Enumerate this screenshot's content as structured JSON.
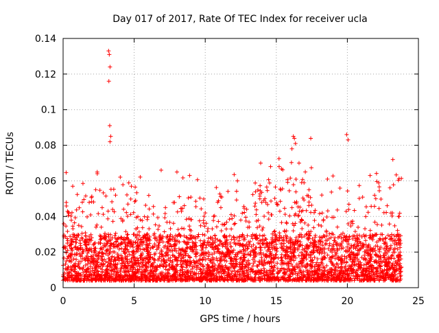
{
  "chart_data": {
    "type": "scatter",
    "title": "Day 017 of 2017, Rate Of TEC Index for receiver ucla",
    "xlabel": "GPS time / hours",
    "ylabel": "ROTI / TECUs",
    "xlim": [
      0,
      25
    ],
    "ylim": [
      0,
      0.14
    ],
    "xticks": [
      0,
      5,
      10,
      15,
      20,
      25
    ],
    "xtick_labels": [
      "0",
      "5",
      "10",
      "15",
      "20",
      "25"
    ],
    "yticks": [
      0,
      0.02,
      0.04,
      0.06,
      0.08,
      0.1,
      0.12,
      0.14
    ],
    "ytick_labels": [
      "0",
      "0.02",
      "0.04",
      "0.06",
      "0.08",
      "0.1",
      "0.12",
      "0.14"
    ],
    "grid": true,
    "marker": "+",
    "color": "#ff0000",
    "sampled_points": {
      "x": [
        3.2,
        3.25,
        3.3,
        3.22,
        3.28,
        3.35,
        3.3,
        16.2,
        16.35,
        16.1,
        19.95,
        20.05,
        2.4,
        6.9,
        8.9,
        13.9,
        14.6,
        15.2,
        16.6,
        18.6,
        21.6,
        23.2,
        0.3,
        1.1,
        4.2,
        5.1,
        7.2,
        10.0,
        11.1,
        12.5,
        14.2,
        17.3,
        18.2,
        22.0,
        23.6
      ],
      "y": [
        0.133,
        0.131,
        0.124,
        0.116,
        0.091,
        0.085,
        0.082,
        0.085,
        0.081,
        0.078,
        0.086,
        0.083,
        0.065,
        0.066,
        0.063,
        0.07,
        0.068,
        0.068,
        0.07,
        0.061,
        0.063,
        0.072,
        0.025,
        0.035,
        0.038,
        0.049,
        0.045,
        0.042,
        0.045,
        0.038,
        0.05,
        0.055,
        0.052,
        0.05,
        0.04
      ]
    },
    "dense_band": {
      "x_start": 0,
      "x_end": 23.8,
      "typical_min": 0.004,
      "typical_max": 0.03
    }
  }
}
